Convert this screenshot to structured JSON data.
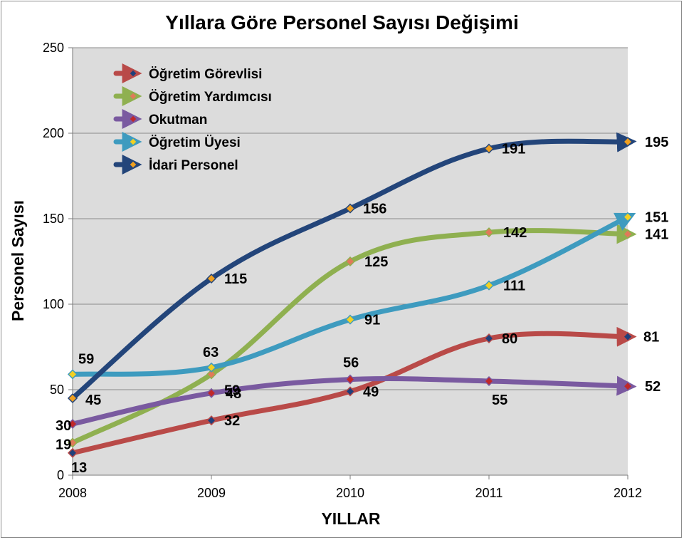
{
  "chart_data": {
    "type": "line",
    "title": "Yıllara Göre Personel Sayısı Değişimi",
    "xlabel": "YILLAR",
    "ylabel": "Personel Sayısı",
    "x": [
      "2008",
      "2009",
      "2010",
      "2011",
      "2012"
    ],
    "ylim": [
      0,
      250
    ],
    "yticks": [
      "0",
      "50",
      "100",
      "150",
      "200",
      "250"
    ],
    "grid": true,
    "legend_position": "top-left",
    "series": [
      {
        "name": "Öğretim Görevlisi",
        "values": [
          13,
          32,
          49,
          80,
          81
        ],
        "color": "#b94a48",
        "marker_color": "#1f3f7a",
        "labels": [
          "13",
          "32",
          "49",
          "80",
          "81"
        ]
      },
      {
        "name": "Öğretim Yardımcısı",
        "values": [
          19,
          59,
          125,
          142,
          141
        ],
        "color": "#8fb050",
        "marker_color": "#e07a5a",
        "labels": [
          "19",
          "59",
          "125",
          "142",
          "141"
        ]
      },
      {
        "name": "Okutman",
        "values": [
          30,
          48,
          56,
          55,
          52
        ],
        "color": "#7a5aa0",
        "marker_color": "#c0282a",
        "labels": [
          "30",
          "48",
          "56",
          "55",
          "52"
        ]
      },
      {
        "name": "Öğretim Üyesi",
        "values": [
          59,
          63,
          91,
          111,
          151
        ],
        "color": "#3e9bbf",
        "marker_color": "#f2d022",
        "labels": [
          "59",
          "63",
          "91",
          "111",
          "151"
        ]
      },
      {
        "name": "İdari Personel",
        "values": [
          45,
          115,
          156,
          191,
          195
        ],
        "color": "#23457a",
        "marker_color": "#f0a020",
        "labels": [
          "45",
          "115",
          "156",
          "191",
          "195"
        ]
      }
    ]
  }
}
